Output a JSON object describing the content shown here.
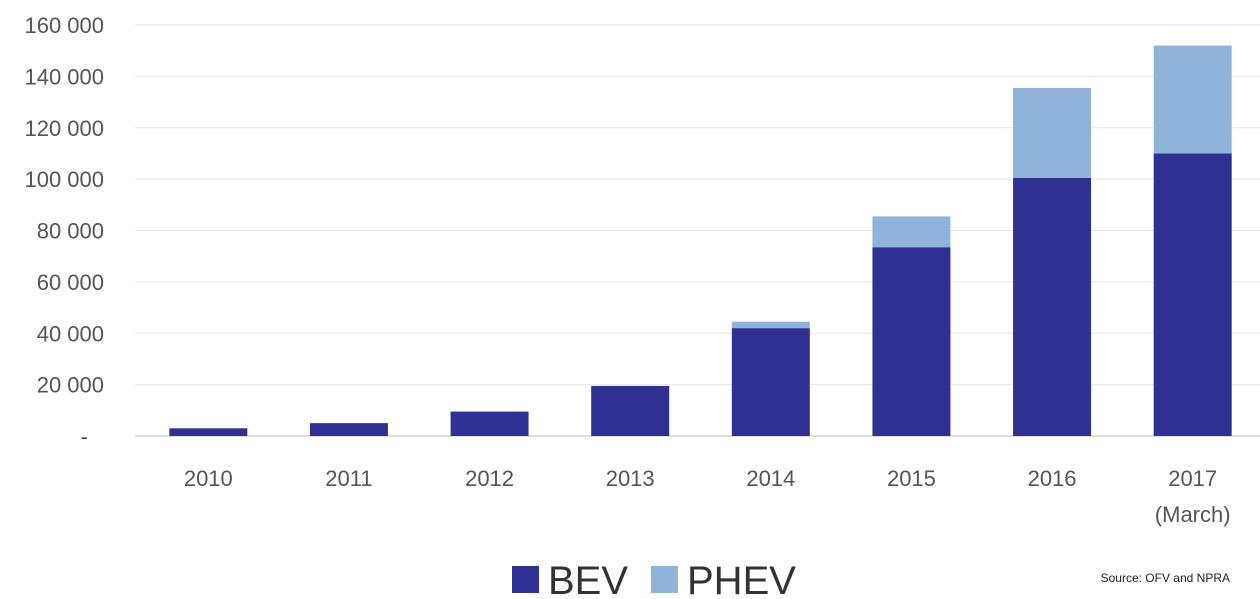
{
  "chart_data": {
    "type": "bar",
    "stacked": true,
    "categories": [
      "2010",
      "2011",
      "2012",
      "2013",
      "2014",
      "2015",
      "2016",
      "2017 (March)"
    ],
    "series": [
      {
        "name": "BEV",
        "color": "#2e3192",
        "values": [
          3000,
          5000,
          9500,
          19500,
          42000,
          73500,
          100500,
          110000
        ]
      },
      {
        "name": "PHEV",
        "color": "#8fb3d9",
        "values": [
          0,
          0,
          0,
          0,
          2500,
          12000,
          35000,
          42000
        ]
      }
    ],
    "yticks": [
      0,
      20000,
      40000,
      60000,
      80000,
      100000,
      120000,
      140000,
      160000
    ],
    "ytick_labels": [
      "-",
      "20 000",
      "40 000",
      "60 000",
      "80 000",
      "100 000",
      "120 000",
      "140 000",
      "160 000"
    ],
    "ylim": [
      0,
      160000
    ],
    "grid": true,
    "legend_position": "bottom-center",
    "source": "Source: OFV and NPRA"
  }
}
